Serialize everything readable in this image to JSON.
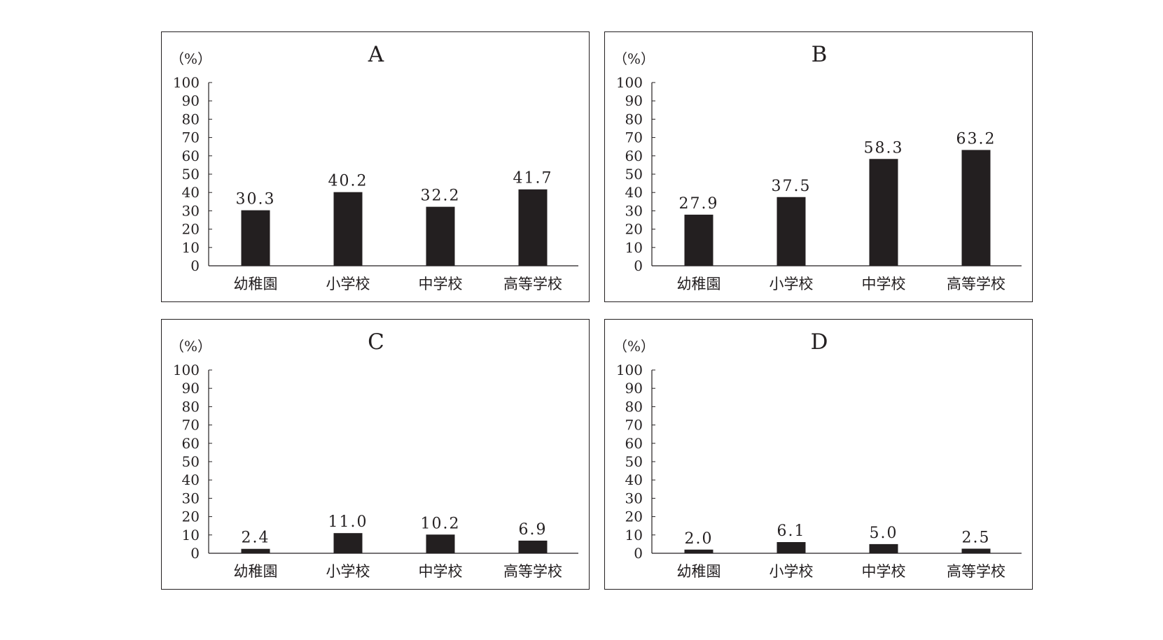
{
  "chart_data": [
    {
      "type": "bar",
      "title": "A",
      "ylabel": "（%）",
      "ylim": [
        0,
        100
      ],
      "yticks": [
        "0",
        "10",
        "20",
        "30",
        "40",
        "50",
        "60",
        "70",
        "80",
        "90",
        "100"
      ],
      "categories": [
        "幼稚園",
        "小学校",
        "中学校",
        "高等学校"
      ],
      "values": [
        30.3,
        40.2,
        32.2,
        41.7
      ],
      "value_labels": [
        "30.3",
        "40.2",
        "32.2",
        "41.7"
      ],
      "bar_color": "#231f20"
    },
    {
      "type": "bar",
      "title": "B",
      "ylabel": "（%）",
      "ylim": [
        0,
        100
      ],
      "yticks": [
        "0",
        "10",
        "20",
        "30",
        "40",
        "50",
        "60",
        "70",
        "80",
        "90",
        "100"
      ],
      "categories": [
        "幼稚園",
        "小学校",
        "中学校",
        "高等学校"
      ],
      "values": [
        27.9,
        37.5,
        58.3,
        63.2
      ],
      "value_labels": [
        "27.9",
        "37.5",
        "58.3",
        "63.2"
      ],
      "bar_color": "#231f20"
    },
    {
      "type": "bar",
      "title": "C",
      "ylabel": "（%）",
      "ylim": [
        0,
        100
      ],
      "yticks": [
        "0",
        "10",
        "20",
        "30",
        "40",
        "50",
        "60",
        "70",
        "80",
        "90",
        "100"
      ],
      "categories": [
        "幼稚園",
        "小学校",
        "中学校",
        "高等学校"
      ],
      "values": [
        2.4,
        11.0,
        10.2,
        6.9
      ],
      "value_labels": [
        "2.4",
        "11.0",
        "10.2",
        "6.9"
      ],
      "bar_color": "#231f20"
    },
    {
      "type": "bar",
      "title": "D",
      "ylabel": "（%）",
      "ylim": [
        0,
        100
      ],
      "yticks": [
        "0",
        "10",
        "20",
        "30",
        "40",
        "50",
        "60",
        "70",
        "80",
        "90",
        "100"
      ],
      "categories": [
        "幼稚園",
        "小学校",
        "中学校",
        "高等学校"
      ],
      "values": [
        2.0,
        6.1,
        5.0,
        2.5
      ],
      "value_labels": [
        "2.0",
        "6.1",
        "5.0",
        "2.5"
      ],
      "bar_color": "#231f20"
    }
  ]
}
